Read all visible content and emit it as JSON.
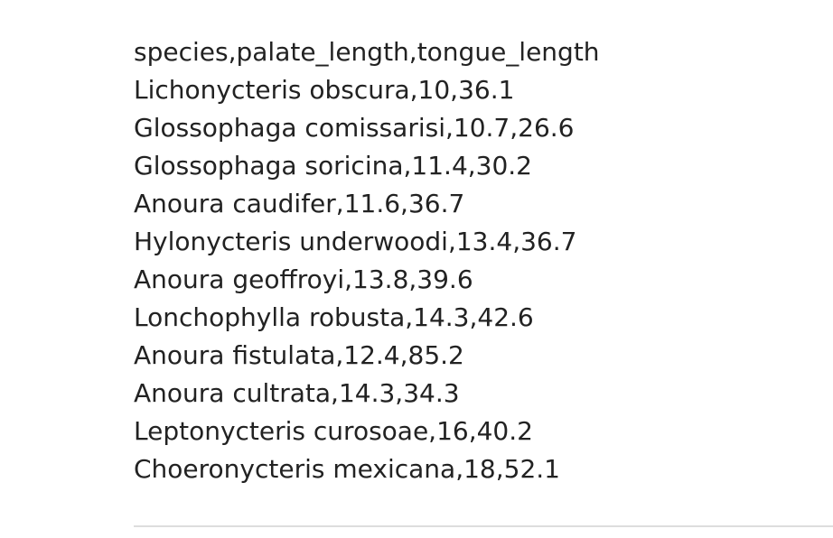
{
  "csv": {
    "lines": [
      "species,palate_length,tongue_length",
      "Lichonycteris obscura,10,36.1",
      "Glossophaga comissarisi,10.7,26.6",
      "Glossophaga soricina,11.4,30.2",
      "Anoura caudifer,11.6,36.7",
      "Hylonycteris underwoodi,13.4,36.7",
      "Anoura geoffroyi,13.8,39.6",
      "Lonchophylla robusta,14.3,42.6",
      "Anoura fistulata,12.4,85.2",
      "Anoura cultrata,14.3,34.3",
      "Leptonycteris curosoae,16,40.2",
      "Choeronycteris mexicana,18,52.1"
    ]
  }
}
